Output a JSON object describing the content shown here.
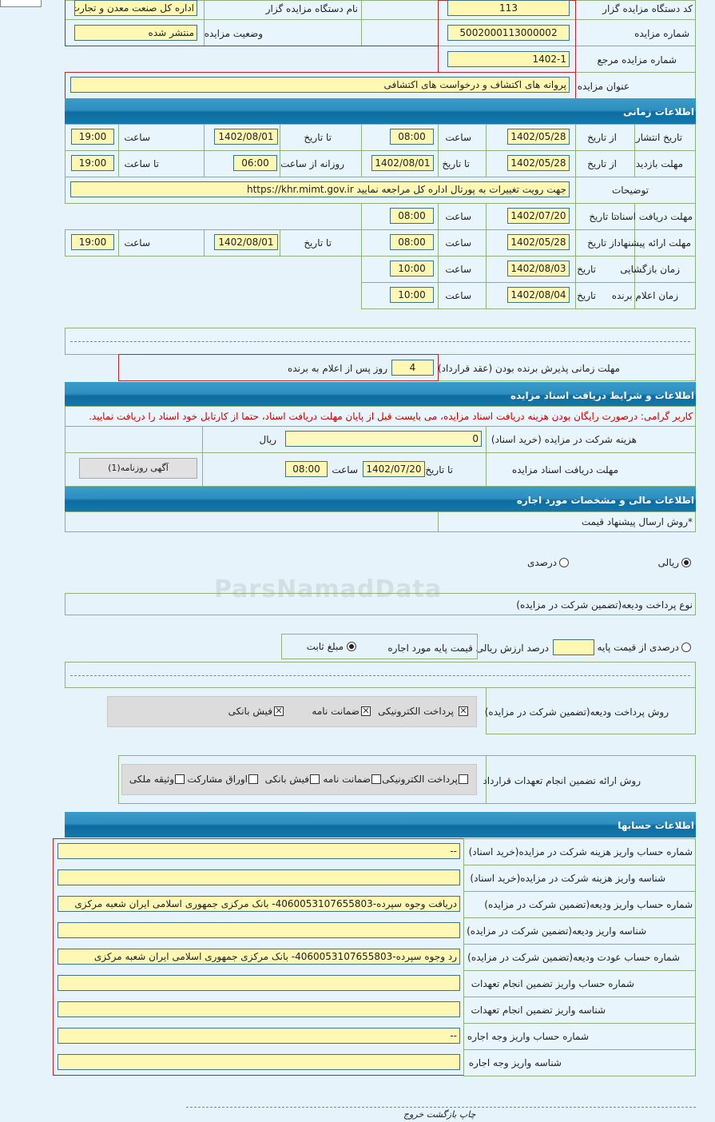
{
  "general": {
    "org_code_label": "کد دستگاه مزایده گزار",
    "org_code": "113",
    "org_name_label": "نام دستگاه مزایده گزار",
    "org_name": "اداره کل صنعت  معدن و تجارت",
    "auction_no_label": "شماره مزایده",
    "auction_no": "5002000113000002",
    "status_label": "وضعیت مزایده",
    "status": "منتشر شده",
    "ref_no_label": "شماره مزایده مرجع",
    "ref_no": "1402-1",
    "title_label": "عنوان مزایده",
    "title": "پروانه های اکتشاف و درخواست های اکتشافی"
  },
  "timing": {
    "header": "اطلاعات زمانی",
    "publish": {
      "label": "تاریخ انتشار",
      "from_label": "از تاریخ",
      "from_date": "1402/05/28",
      "time1_label": "ساعت",
      "from_time": "08:00",
      "to_label": "تا تاریخ",
      "to_date": "1402/08/01",
      "time2_label": "ساعت",
      "to_time": "19:00"
    },
    "visit": {
      "label": "مهلت بازدید",
      "from_label": "از تاریخ",
      "from_date": "1402/05/28",
      "to_label": "تا تاریخ",
      "to_date": "1402/08/01",
      "daily_label": "روزانه از ساعت",
      "daily_from": "06:00",
      "daily_to_label": "تا ساعت",
      "daily_to": "19:00"
    },
    "notes": {
      "label": "توضیحات",
      "value": "جهت رویت تغییرات به پورتال اداره کل مراجعه نمایید https://khr.mimt.gov.ir"
    },
    "doc_deadline": {
      "label": "مهلت دریافت اسناد",
      "to_label": "تا تاریخ",
      "date": "1402/07/20",
      "time_label": "ساعت",
      "time": "08:00"
    },
    "offer": {
      "label": "مهلت ارائه پیشنهاد",
      "from_label": "از تاریخ",
      "from_date": "1402/05/28",
      "time1_label": "ساعت",
      "from_time": "08:00",
      "to_label": "تا تاریخ",
      "to_date": "1402/08/01",
      "time2_label": "ساعت",
      "to_time": "19:00"
    },
    "opening": {
      "label": "زمان بازگشایی",
      "date_label": "تاریخ",
      "date": "1402/08/03",
      "time_label": "ساعت",
      "time": "10:00"
    },
    "winner": {
      "label": "زمان اعلام برنده",
      "date_label": "تاریخ",
      "date": "1402/08/04",
      "time_label": "ساعت",
      "time": "10:00"
    },
    "acceptance": {
      "label": "مهلت زمانی پذیرش برنده بودن (عقد قرارداد)",
      "days": "4",
      "suffix": "روز پس از اعلام به برنده"
    }
  },
  "documents": {
    "header": "اطلاعات و شرایط دریافت اسناد مزایده",
    "notice": "کاربر گرامی: درصورت رایگان بودن هزینه دریافت اسناد مزایده، می بایست قبل از پایان مهلت دریافت اسناد، حتما از کارتابل خود اسناد را دریافت نمایید.",
    "notice_color": "#cc0000",
    "fee_label": "هزینه شرکت در مزایده (خرید اسناد)",
    "fee": "0",
    "currency": "ریال",
    "deadline_label": "مهلت دریافت اسناد مزایده",
    "to_label": "تا تاریخ",
    "date": "1402/07/20",
    "time_label": "ساعت",
    "time": "08:00",
    "newspaper_button": "آگهی روزنامه(1)"
  },
  "financial": {
    "header": "اطلاعات مالی و مشخصات مورد اجاره",
    "price_method_label": "*روش ارسال پیشنهاد قیمت",
    "rial_option": "ریالی",
    "rial_selected": true,
    "percent_option": "درصدی",
    "percent_selected": false,
    "deposit_type_label": "نوع پرداخت ودیعه(تضمین شرکت در مزایده)",
    "deposit_percent_option": "درصدی از قیمت پایه",
    "deposit_percent_selected": false,
    "deposit_percent_value": "",
    "deposit_percent_suffix": "درصد ارزش ریالی قیمت پایه مورد اجاره",
    "fixed_option": "مبلغ ثابت",
    "fixed_selected": true,
    "deposit_method_label": "روش پرداخت ودیعه(تضمین شرکت در مزایده)",
    "deposit_methods": [
      {
        "label": "پرداخت الکترونیکی",
        "state": "crossed"
      },
      {
        "label": "ضمانت نامه",
        "state": "crossed"
      },
      {
        "label": "فیش بانکی",
        "state": "crossed"
      }
    ],
    "guarantee_label": "روش ارائه تضمین انجام تعهدات قرارداد",
    "guarantee_methods": [
      {
        "label": "پرداخت الکترونیکی",
        "checked": false
      },
      {
        "label": "ضمانت نامه",
        "checked": false
      },
      {
        "label": "فیش بانکی",
        "checked": false
      },
      {
        "label": "اوراق مشارکت",
        "checked": false
      },
      {
        "label": "وثیقه ملکی",
        "checked": false
      }
    ]
  },
  "accounts": {
    "header": "اطلاعات حسابها",
    "rows": [
      {
        "label": "شماره حساب واریز هزینه شرکت در مزایده(خرید اسناد)",
        "value": "--"
      },
      {
        "label": "شناسه واریز هزینه شرکت در مزایده(خرید اسناد)",
        "value": ""
      },
      {
        "label": "شماره حساب واریز ودیعه(تضمین شرکت در مزایده)",
        "value": "دریافت وجوه سپرده-4060053107655803- بانک مرکزی جمهوری اسلامی ایران شعبه مرکزی"
      },
      {
        "label": "شناسه واریز ودیعه(تضمین شرکت در مزایده)",
        "value": ""
      },
      {
        "label": "شماره حساب عودت ودیعه(تضمین شرکت در مزایده)",
        "value": "رد وجوه سپرده-4060053107655803- بانک مرکزی جمهوری اسلامی ایران شعبه مرکزی"
      },
      {
        "label": "شماره حساب واریز تضمین انجام تعهدات",
        "value": ""
      },
      {
        "label": "شناسه واریز تضمین انجام تعهدات",
        "value": ""
      },
      {
        "label": "شماره حساب واریز وجه اجاره",
        "value": "--"
      },
      {
        "label": "شناسه واریز وجه اجاره",
        "value": ""
      }
    ]
  },
  "footer": {
    "print": "چاپ",
    "back": "بازگشت",
    "exit": "خروج"
  },
  "watermark": "ParsNamadData"
}
